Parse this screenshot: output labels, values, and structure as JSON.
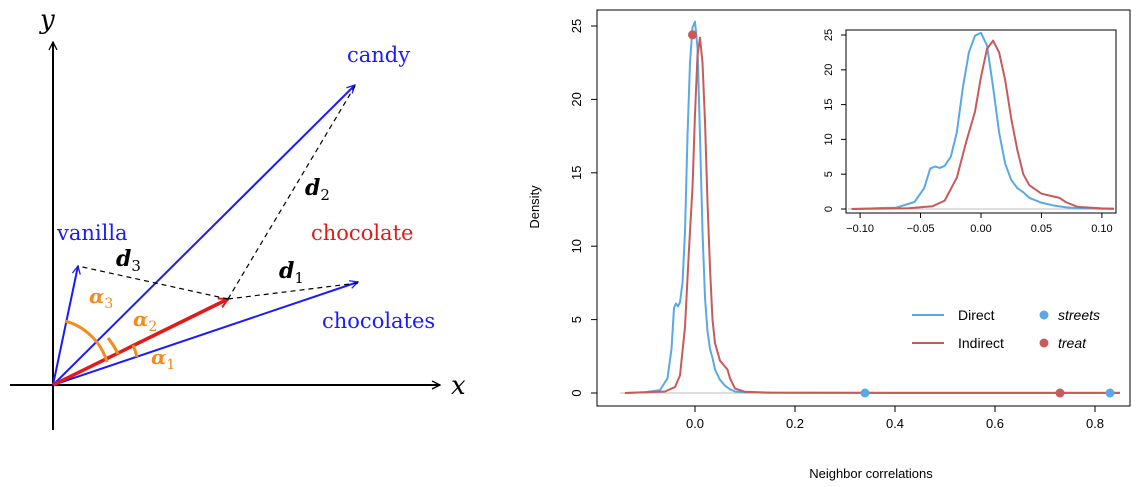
{
  "diagram": {
    "axis_x_label": "x",
    "axis_y_label": "y",
    "vectors": [
      {
        "label": "candy",
        "color": "#1a1aff"
      },
      {
        "label": "vanilla",
        "color": "#1a1aff"
      },
      {
        "label": "chocolates",
        "color": "#1a1aff"
      },
      {
        "label": "chocolate",
        "color": "#e31a1a"
      }
    ],
    "distances": [
      {
        "base": "d",
        "sub": "1"
      },
      {
        "base": "d",
        "sub": "2"
      },
      {
        "base": "d",
        "sub": "3"
      }
    ],
    "angles": [
      {
        "base": "α",
        "sub": "1"
      },
      {
        "base": "α",
        "sub": "2"
      },
      {
        "base": "α",
        "sub": "3"
      }
    ],
    "colors": {
      "word_vector": "#1a1aff",
      "target_vector": "#e31a1a",
      "angle": "#f28c1e",
      "distance": "#000000"
    }
  },
  "chart_data": [
    {
      "type": "line",
      "xlabel": "Neighbor correlations",
      "ylabel": "Density",
      "xlim": [
        -0.15,
        0.85
      ],
      "ylim": [
        0,
        25
      ],
      "xticks": [
        "0.0",
        "0.2",
        "0.4",
        "0.6",
        "0.8"
      ],
      "yticks": [
        "0",
        "5",
        "10",
        "15",
        "20",
        "25"
      ],
      "legend": {
        "placement": "bottom-right",
        "lines": [
          {
            "name": "Direct",
            "color": "#5aa8e6"
          },
          {
            "name": "Indirect",
            "color": "#c85a5a"
          }
        ],
        "points": [
          {
            "name": "streets",
            "color": "#5aa8e6"
          },
          {
            "name": "treat",
            "color": "#c85a5a"
          }
        ]
      },
      "series": [
        {
          "name": "Direct",
          "color": "#5aa8e6",
          "x": [
            -0.14,
            -0.1,
            -0.07,
            -0.055,
            -0.047,
            -0.042,
            -0.038,
            -0.034,
            -0.03,
            -0.025,
            -0.02,
            -0.015,
            -0.01,
            -0.005,
            0.0,
            0.005,
            0.01,
            0.015,
            0.02,
            0.025,
            0.03,
            0.035,
            0.04,
            0.05,
            0.06,
            0.07,
            0.08,
            0.1,
            0.15,
            0.4,
            0.85
          ],
          "y": [
            0,
            0.05,
            0.2,
            1.0,
            3.0,
            5.8,
            6.1,
            5.9,
            6.2,
            7.5,
            11.0,
            17.5,
            22.5,
            24.9,
            25.3,
            23.5,
            17.5,
            11.0,
            6.5,
            4.2,
            3.0,
            2.4,
            1.6,
            0.9,
            0.5,
            0.25,
            0.1,
            0.04,
            0.02,
            0.01,
            0.01
          ]
        },
        {
          "name": "Indirect",
          "color": "#c85a5a",
          "x": [
            -0.14,
            -0.1,
            -0.06,
            -0.04,
            -0.03,
            -0.02,
            -0.012,
            -0.005,
            0.0,
            0.005,
            0.01,
            0.015,
            0.02,
            0.025,
            0.03,
            0.035,
            0.04,
            0.05,
            0.06,
            0.065,
            0.07,
            0.08,
            0.1,
            0.15,
            0.4,
            0.85
          ],
          "y": [
            0,
            0.05,
            0.1,
            0.4,
            1.2,
            4.5,
            9.8,
            14.0,
            19.0,
            23.0,
            24.2,
            22.5,
            18.5,
            13.0,
            8.5,
            5.0,
            3.4,
            2.2,
            1.8,
            1.6,
            1.0,
            0.3,
            0.08,
            0.03,
            0.01,
            0.01
          ]
        }
      ],
      "points": [
        {
          "name": "streets",
          "color": "#5aa8e6",
          "x": [
            0.34,
            0.83
          ],
          "y": [
            0,
            0
          ]
        },
        {
          "name": "treat",
          "color": "#c85a5a",
          "x": [
            -0.005,
            0.73
          ],
          "y": [
            24.4,
            0
          ]
        }
      ]
    },
    {
      "type": "line",
      "xlim": [
        -0.11,
        0.11
      ],
      "ylim": [
        0,
        25
      ],
      "xticks": [
        "−0.10",
        "−0.05",
        "0.00",
        "0.05",
        "0.10"
      ],
      "yticks": [
        "0",
        "5",
        "10",
        "15",
        "20",
        "25"
      ],
      "series": [
        {
          "name": "Direct",
          "color": "#5aa8e6",
          "x": [
            -0.107,
            -0.07,
            -0.055,
            -0.047,
            -0.042,
            -0.038,
            -0.034,
            -0.03,
            -0.025,
            -0.02,
            -0.015,
            -0.01,
            -0.005,
            0.0,
            0.005,
            0.01,
            0.015,
            0.02,
            0.025,
            0.03,
            0.035,
            0.04,
            0.05,
            0.06,
            0.07,
            0.08,
            0.1,
            0.11
          ],
          "y": [
            0,
            0.2,
            1.0,
            3.0,
            5.8,
            6.1,
            5.9,
            6.2,
            7.5,
            11.0,
            17.5,
            22.5,
            24.9,
            25.3,
            23.5,
            17.5,
            11.0,
            6.5,
            4.2,
            3.0,
            2.4,
            1.6,
            0.9,
            0.5,
            0.25,
            0.1,
            0.04,
            0.02
          ]
        },
        {
          "name": "Indirect",
          "color": "#c85a5a",
          "x": [
            -0.107,
            -0.06,
            -0.04,
            -0.03,
            -0.02,
            -0.012,
            -0.005,
            0.0,
            0.005,
            0.01,
            0.015,
            0.02,
            0.025,
            0.03,
            0.035,
            0.04,
            0.05,
            0.06,
            0.065,
            0.07,
            0.08,
            0.1,
            0.11
          ],
          "y": [
            0,
            0.1,
            0.4,
            1.2,
            4.5,
            9.8,
            14.0,
            19.0,
            23.0,
            24.2,
            22.5,
            18.5,
            13.0,
            8.5,
            5.0,
            3.4,
            2.2,
            1.8,
            1.6,
            1.0,
            0.3,
            0.08,
            0.03
          ]
        }
      ]
    }
  ]
}
